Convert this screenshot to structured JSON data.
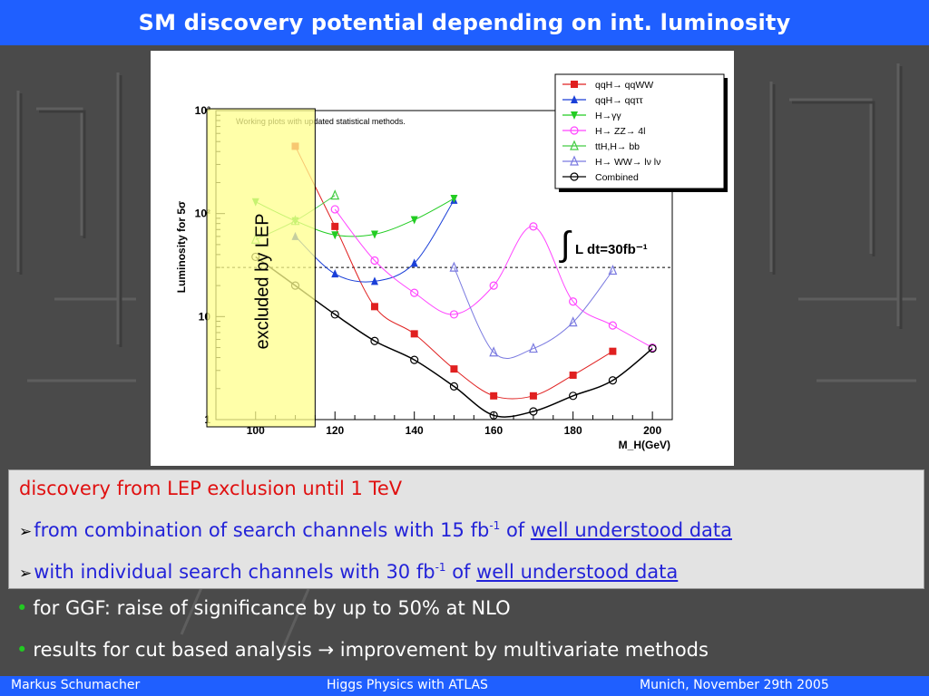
{
  "title": "SM discovery potential depending on int. luminosity",
  "chart_data": {
    "type": "line",
    "title": "",
    "xlabel": "M_H(GeV)",
    "ylabel": "Luminosity for 5σ",
    "xlim": [
      90,
      205
    ],
    "ylim": [
      1,
      1000
    ],
    "yscale": "log",
    "xticks": [
      100,
      120,
      140,
      160,
      180,
      200
    ],
    "yticks": [
      1,
      10,
      100,
      1000
    ],
    "ytick_labels": [
      "1",
      "10",
      "10²",
      "10³"
    ],
    "grid": false,
    "legend_position": "top-right",
    "annotation": "Working plots with updated statistical methods.",
    "integral_label": "L dt=30fb⁻¹",
    "reference_line_value": 30,
    "excluded_band": {
      "x_from": 90,
      "x_to": 115,
      "label": "excluded by LEP",
      "color": "#ffff8c"
    },
    "series": [
      {
        "name": "qqH→ qqWW",
        "color": "#e02020",
        "marker": "square",
        "x": [
          110,
          120,
          130,
          140,
          150,
          160,
          170,
          180,
          190
        ],
        "y": [
          450,
          75,
          12.5,
          6.8,
          3.1,
          1.7,
          1.7,
          2.7,
          4.6
        ]
      },
      {
        "name": "qqH→ qqττ",
        "color": "#1a3fd8",
        "marker": "triangle-up",
        "x": [
          110,
          120,
          130,
          140,
          150
        ],
        "y": [
          60,
          26,
          22,
          33,
          135
        ]
      },
      {
        "name": "H→γγ",
        "color": "#22cc22",
        "marker": "triangle-down",
        "x": [
          100,
          110,
          120,
          130,
          140,
          150
        ],
        "y": [
          130,
          85,
          62,
          63,
          87,
          140
        ]
      },
      {
        "name": "H→ ZZ→ 4l",
        "color": "#ff44ff",
        "marker": "circle",
        "x": [
          120,
          130,
          140,
          150,
          160,
          170,
          180,
          190,
          200
        ],
        "y": [
          110,
          35,
          17,
          10.5,
          20,
          75,
          14,
          8.2,
          5
        ]
      },
      {
        "name": "ttH,H→ bb",
        "color": "#44cc44",
        "marker": "triangle-up-open",
        "x": [
          100,
          110,
          120
        ],
        "y": [
          56,
          85,
          150
        ]
      },
      {
        "name": "H→ WW→ lν lν",
        "color": "#7a7ae0",
        "marker": "triangle-up-open",
        "x": [
          150,
          160,
          170,
          180,
          190
        ],
        "y": [
          30,
          4.5,
          4.9,
          8.8,
          28
        ]
      },
      {
        "name": "Combined",
        "color": "#000000",
        "marker": "circle-open",
        "x": [
          100,
          110,
          120,
          130,
          140,
          150,
          160,
          170,
          180,
          190,
          200
        ],
        "y": [
          38,
          20,
          10.5,
          5.8,
          3.8,
          2.1,
          1.1,
          1.2,
          1.7,
          2.4,
          4.9
        ]
      }
    ]
  },
  "info": {
    "heading": "discovery from LEP exclusion until 1 TeV",
    "line1": {
      "text": "from combination of search channels with 15  fb",
      "sup": "-1",
      "of": " of ",
      "link": "well understood data"
    },
    "line2": {
      "text": "with individual search channels with 30  fb",
      "sup": "-1",
      "of": " of ",
      "link": "well understood data"
    }
  },
  "bullets": [
    "for GGF: raise of significance by up to 50% at NLO",
    "results for cut based analysis  → improvement by multivariate methods"
  ],
  "footer": {
    "author": "Markus  Schumacher",
    "talk": "Higgs Physics  with ATLAS",
    "place_date": "Munich, November 29th 2005"
  },
  "colors": {
    "title_bar": "#1f5fff",
    "heading_red": "#e01010",
    "text_blue": "#2323d8",
    "bullet_green": "#22c922"
  }
}
